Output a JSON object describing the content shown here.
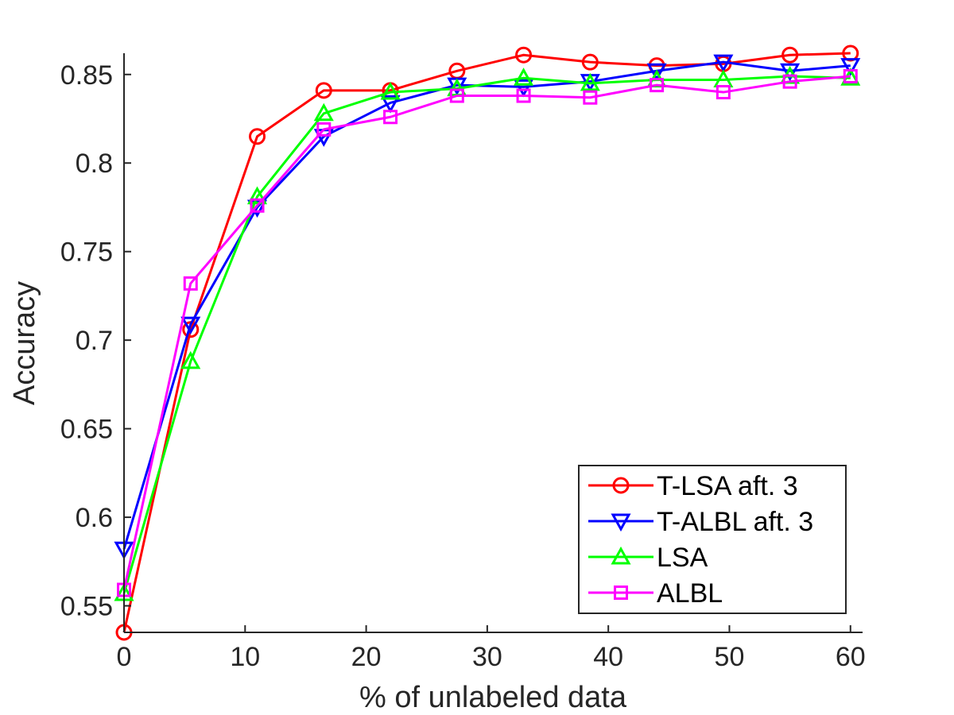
{
  "chart_data": {
    "type": "line",
    "title": "",
    "xlabel": "% of unlabeled data",
    "ylabel": "Accuracy",
    "xlim": [
      0,
      61
    ],
    "ylim": [
      0.535,
      0.862
    ],
    "xticks": [
      0,
      10,
      20,
      30,
      40,
      50,
      60
    ],
    "yticks": [
      0.55,
      0.6,
      0.65,
      0.7,
      0.75,
      0.8,
      0.85
    ],
    "ytick_labels": [
      "0.55",
      "0.6",
      "0.65",
      "0.7",
      "0.75",
      "0.8",
      "0.85"
    ],
    "grid": false,
    "legend_position": "bottom-right",
    "x": [
      0,
      5.5,
      11,
      16.5,
      22,
      27.5,
      33,
      38.5,
      44,
      49.5,
      55,
      60
    ],
    "series": [
      {
        "name": "T-LSA aft. 3",
        "color": "#ff0000",
        "marker": "circle",
        "values": [
          0.535,
          0.706,
          0.815,
          0.841,
          0.841,
          0.852,
          0.861,
          0.857,
          0.855,
          0.856,
          0.861,
          0.862
        ]
      },
      {
        "name": "T-ALBL aft. 3",
        "color": "#0000ff",
        "marker": "triangle-down",
        "values": [
          0.582,
          0.709,
          0.775,
          0.815,
          0.834,
          0.844,
          0.843,
          0.846,
          0.852,
          0.857,
          0.852,
          0.855
        ]
      },
      {
        "name": "LSA",
        "color": "#00ff00",
        "marker": "triangle-up",
        "values": [
          0.557,
          0.688,
          0.781,
          0.828,
          0.84,
          0.842,
          0.848,
          0.845,
          0.847,
          0.847,
          0.849,
          0.848
        ]
      },
      {
        "name": "ALBL",
        "color": "#ff00ff",
        "marker": "square",
        "values": [
          0.559,
          0.732,
          0.776,
          0.819,
          0.826,
          0.838,
          0.838,
          0.837,
          0.844,
          0.84,
          0.846,
          0.849
        ]
      }
    ]
  }
}
